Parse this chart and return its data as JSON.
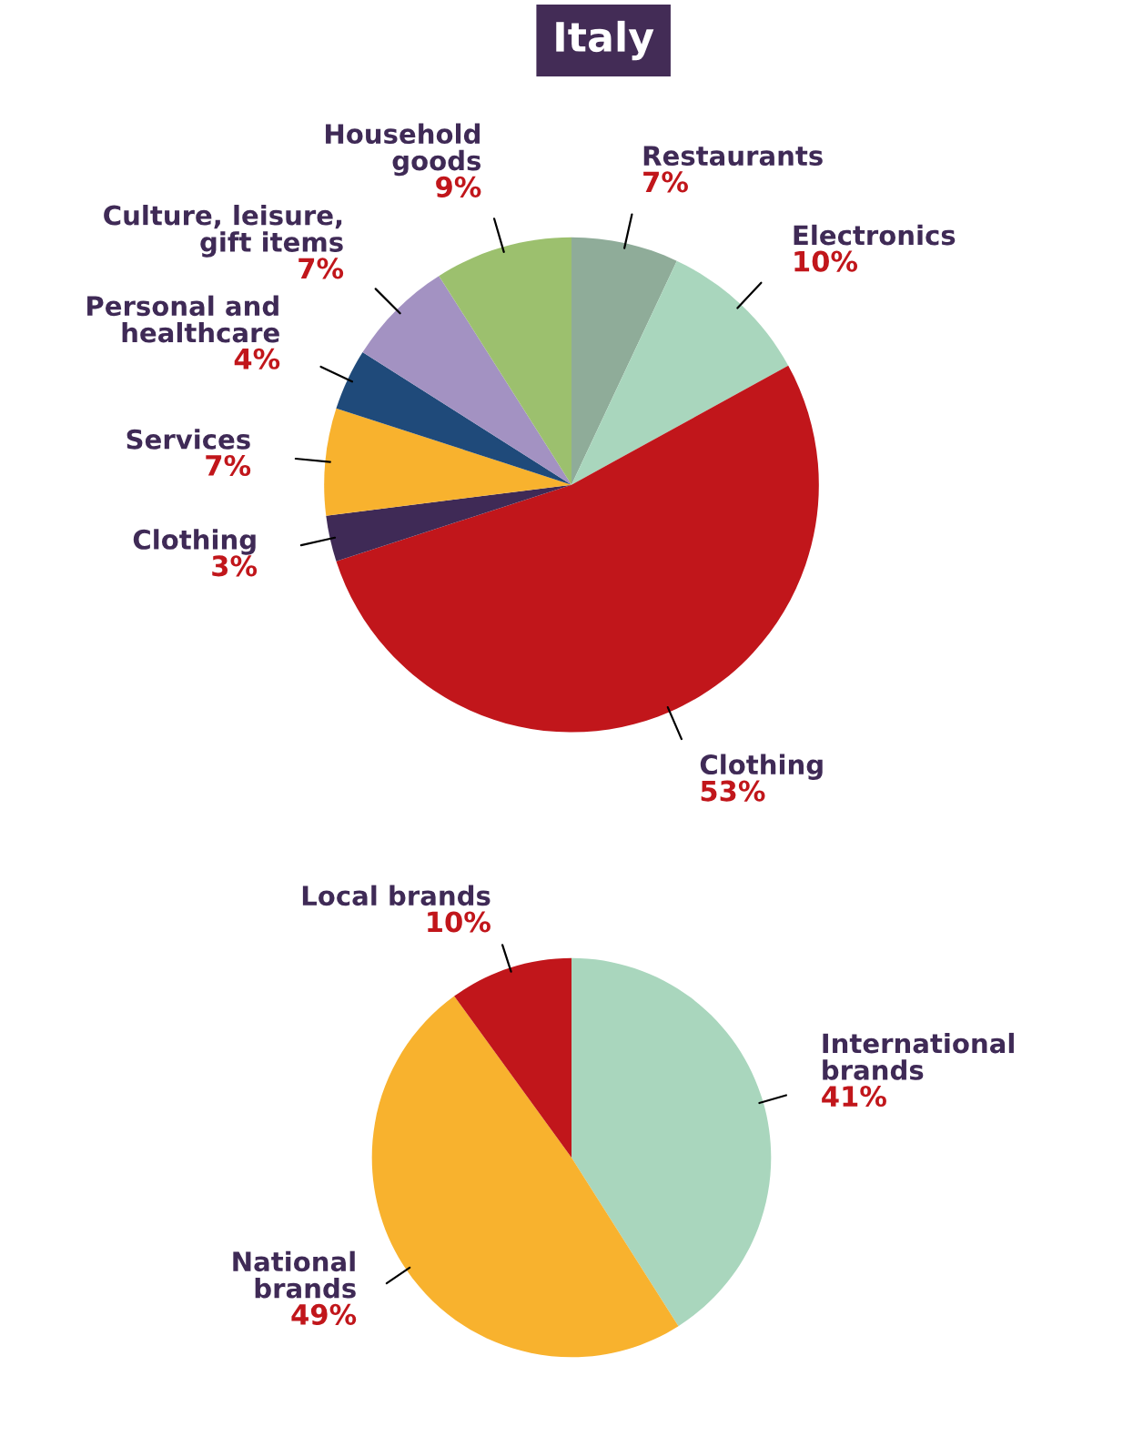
{
  "chart_data": [
    {
      "type": "pie",
      "title": "Italy",
      "categories": [
        "Restaurants",
        "Electronics",
        "Clothing",
        "Clothing",
        "Services",
        "Personal and\nhealthcare",
        "Culture, leisure,\ngift items",
        "Household\ngoods"
      ],
      "values": [
        7,
        10,
        53,
        3,
        7,
        4,
        7,
        9
      ],
      "colors": [
        "#8fac99",
        "#a9d6bd",
        "#c1161b",
        "#3f2a56",
        "#f8b22e",
        "#1f4a7a",
        "#a392c2",
        "#9cc06e"
      ],
      "value_labels": [
        "7%",
        "10%",
        "53%",
        "3%",
        "7%",
        "4%",
        "7%",
        "9%"
      ]
    },
    {
      "type": "pie",
      "categories": [
        "International\nbrands",
        "National\nbrands",
        "Local brands"
      ],
      "values": [
        41,
        49,
        10
      ],
      "colors": [
        "#a9d6bd",
        "#f8b22e",
        "#c1161b"
      ],
      "value_labels": [
        "41%",
        "49%",
        "10%"
      ]
    }
  ]
}
